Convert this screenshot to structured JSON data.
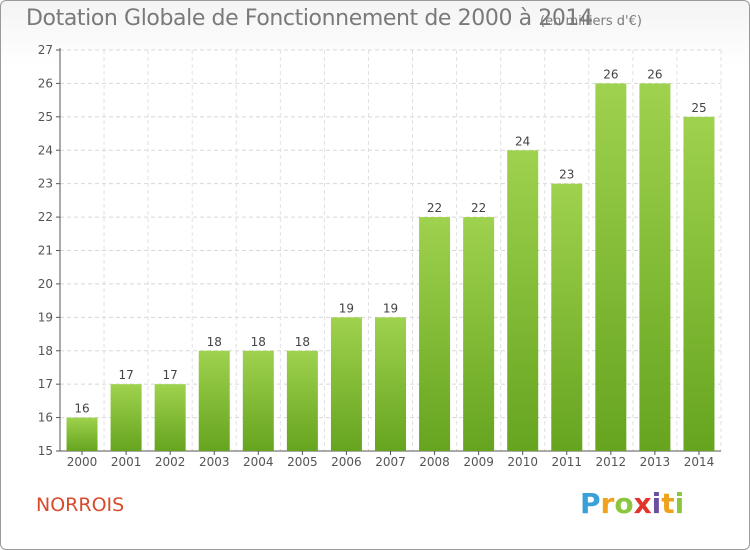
{
  "header": {
    "title": "Dotation Globale de Fonctionnement de 2000 à 2014",
    "subtitle": "(en milliers d'€)"
  },
  "footer": {
    "commune": "NORROIS",
    "logo_text": "Proxiti"
  },
  "colors": {
    "bar_top": "#9fd24e",
    "bar_bottom": "#66a41f",
    "commune": "#d94a2a",
    "axis_text": "#555555"
  },
  "chart_data": {
    "type": "bar",
    "title": "Dotation Globale de Fonctionnement de 2000 à 2014",
    "subtitle": "(en milliers d'€)",
    "categories": [
      "2000",
      "2001",
      "2002",
      "2003",
      "2004",
      "2005",
      "2006",
      "2007",
      "2008",
      "2009",
      "2010",
      "2011",
      "2012",
      "2013",
      "2014"
    ],
    "values": [
      16,
      17,
      17,
      18,
      18,
      18,
      19,
      19,
      22,
      22,
      24,
      23,
      26,
      26,
      25
    ],
    "ylim": [
      15,
      27
    ],
    "yticks": [
      15,
      16,
      17,
      18,
      19,
      20,
      21,
      22,
      23,
      24,
      25,
      26,
      27
    ],
    "grid": true,
    "xlabel": "",
    "ylabel": ""
  }
}
